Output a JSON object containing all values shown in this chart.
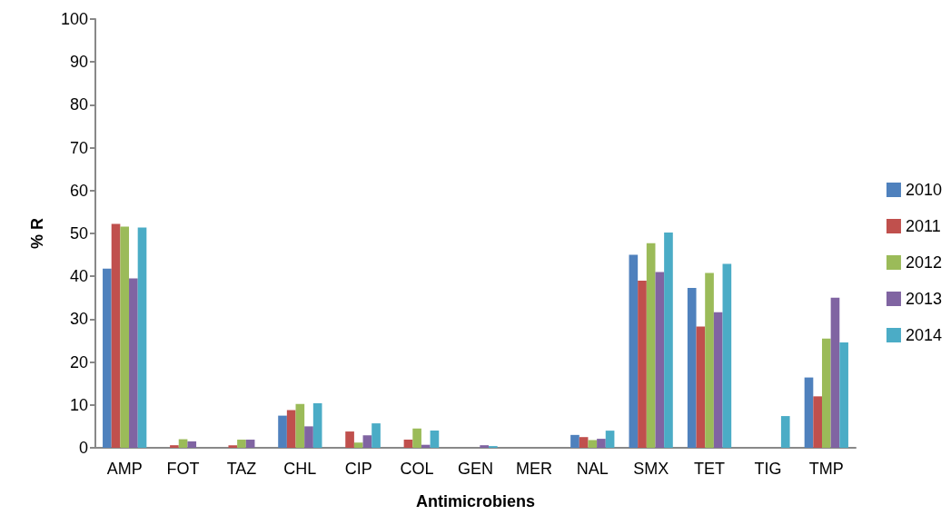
{
  "chart_data": {
    "type": "bar",
    "xlabel": "Antimicrobiens",
    "ylabel": "% R",
    "categories": [
      "AMP",
      "FOT",
      "TAZ",
      "CHL",
      "CIP",
      "COL",
      "GEN",
      "MER",
      "NAL",
      "SMX",
      "TET",
      "TIG",
      "TMP"
    ],
    "series": [
      {
        "name": "2010",
        "color": "#4f81bd",
        "values": [
          41.8,
          0,
          0,
          7.5,
          0,
          0,
          0,
          0,
          3.0,
          45.0,
          37.3,
          0,
          16.4
        ]
      },
      {
        "name": "2011",
        "color": "#c0504d",
        "values": [
          52.2,
          0.6,
          0.6,
          8.8,
          3.8,
          1.9,
          0,
          0,
          2.5,
          39.0,
          28.3,
          0,
          12.0
        ]
      },
      {
        "name": "2012",
        "color": "#9bbb59",
        "values": [
          51.6,
          2.0,
          1.9,
          10.2,
          1.2,
          4.5,
          0,
          0,
          1.8,
          47.7,
          40.8,
          0,
          25.5
        ]
      },
      {
        "name": "2013",
        "color": "#8064a2",
        "values": [
          39.5,
          1.5,
          1.9,
          5.0,
          2.9,
          0.7,
          0.6,
          0,
          2.1,
          41.0,
          31.6,
          0,
          35.0
        ]
      },
      {
        "name": "2014",
        "color": "#4bacc6",
        "values": [
          51.4,
          0,
          0,
          10.4,
          5.7,
          4.0,
          0.4,
          0,
          4.0,
          50.2,
          42.9,
          7.4,
          24.6
        ]
      }
    ],
    "ylim": [
      0,
      100
    ],
    "yticks": [
      0,
      10,
      20,
      30,
      40,
      50,
      60,
      70,
      80,
      90,
      100
    ],
    "grid": false,
    "legend": "right"
  }
}
